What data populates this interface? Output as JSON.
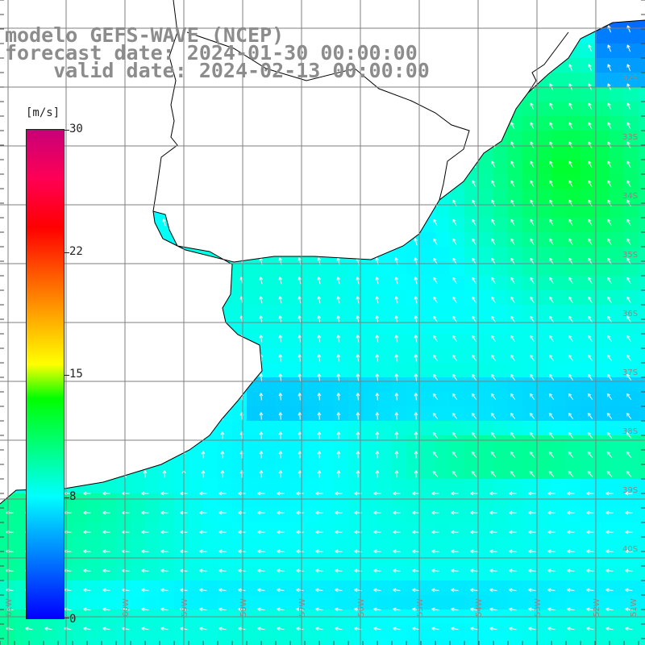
{
  "title": {
    "line1": "modelo GEFS-WAVE (NCEP)",
    "line2": "forecast date: 2024-01-30 00:00:00",
    "line3": "    valid date: 2024-02-13 00:00:00"
  },
  "colorbar": {
    "unit": "[m/s]",
    "ticks": [
      {
        "value": "30"
      },
      {
        "value": "22"
      },
      {
        "value": "15"
      },
      {
        "value": "8"
      },
      {
        "value": "0"
      }
    ],
    "colors": [
      "#0000ff",
      "#00b4ff",
      "#00ffff",
      "#00ff00",
      "#ffff00",
      "#ff8000",
      "#ff0000",
      "#c80078"
    ]
  },
  "map": {
    "lon_labels": [
      "61W",
      "60W",
      "59W",
      "58W",
      "57W",
      "56W",
      "55W",
      "54W",
      "53W",
      "52W",
      "51W"
    ],
    "lat_labels": [
      "32S",
      "33S",
      "34S",
      "35S",
      "36S",
      "37S",
      "38S",
      "39S",
      "40S"
    ],
    "wind_direction": "arrows point north-north-west / west across the basin",
    "land_color": "#ffffff",
    "coast_color": "#000000",
    "grid_color": "#7f7f7f"
  }
}
